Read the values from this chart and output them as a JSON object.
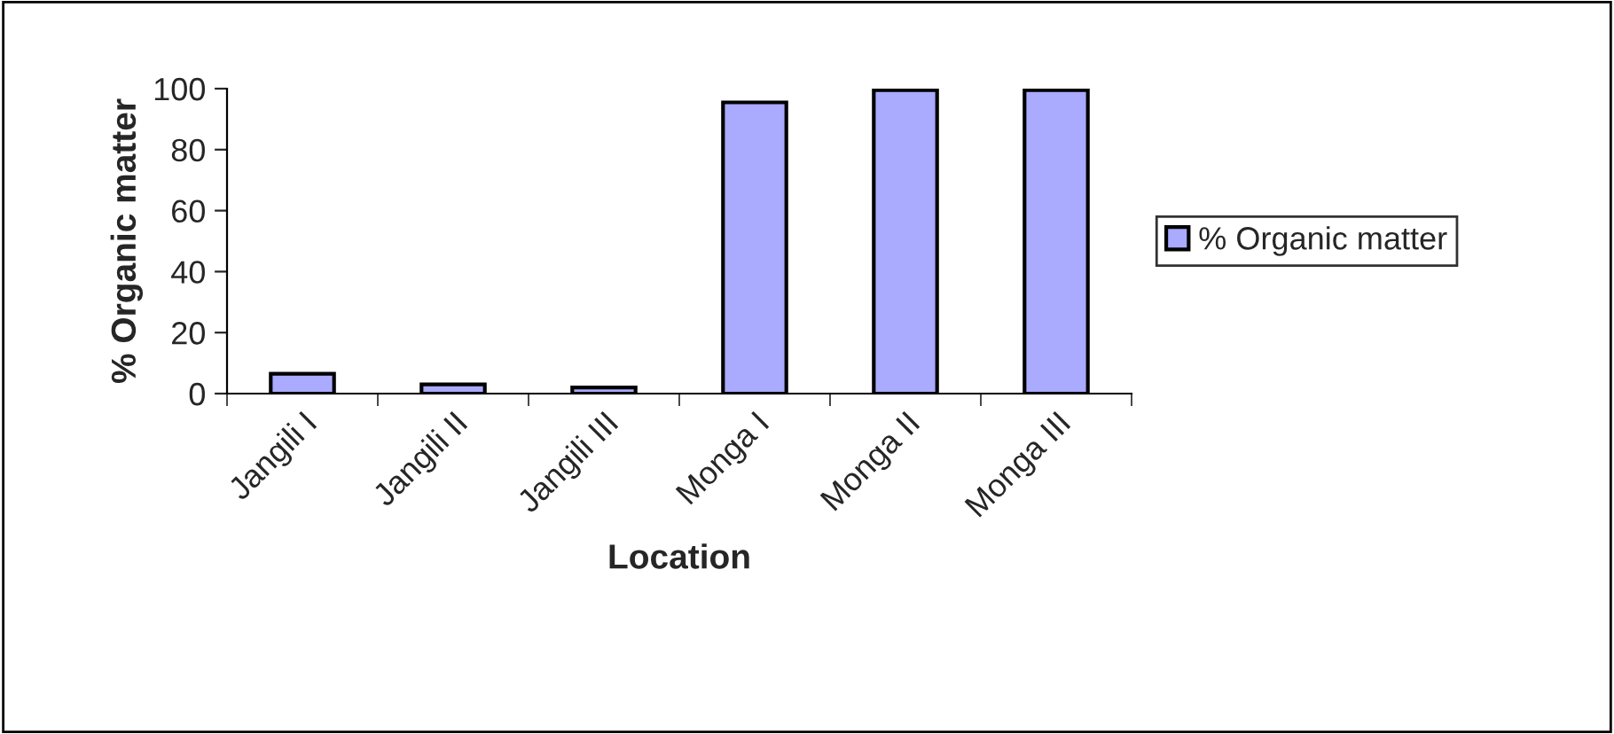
{
  "chart_data": {
    "type": "bar",
    "xlabel": "Location",
    "ylabel": "% Organic matter",
    "categories": [
      "Jangili I",
      "Jangili II",
      "Jangili III",
      "Monga I",
      "Monga II",
      "Monga III"
    ],
    "series": [
      {
        "name": "% Organic matter",
        "color": "#aaaaff",
        "values": [
          6.5,
          3,
          2,
          95.5,
          99.5,
          99.5
        ]
      }
    ],
    "ylim": [
      0,
      100
    ],
    "yticks": [
      0,
      20,
      40,
      60,
      80,
      100
    ],
    "grid": false,
    "legend": "right"
  }
}
